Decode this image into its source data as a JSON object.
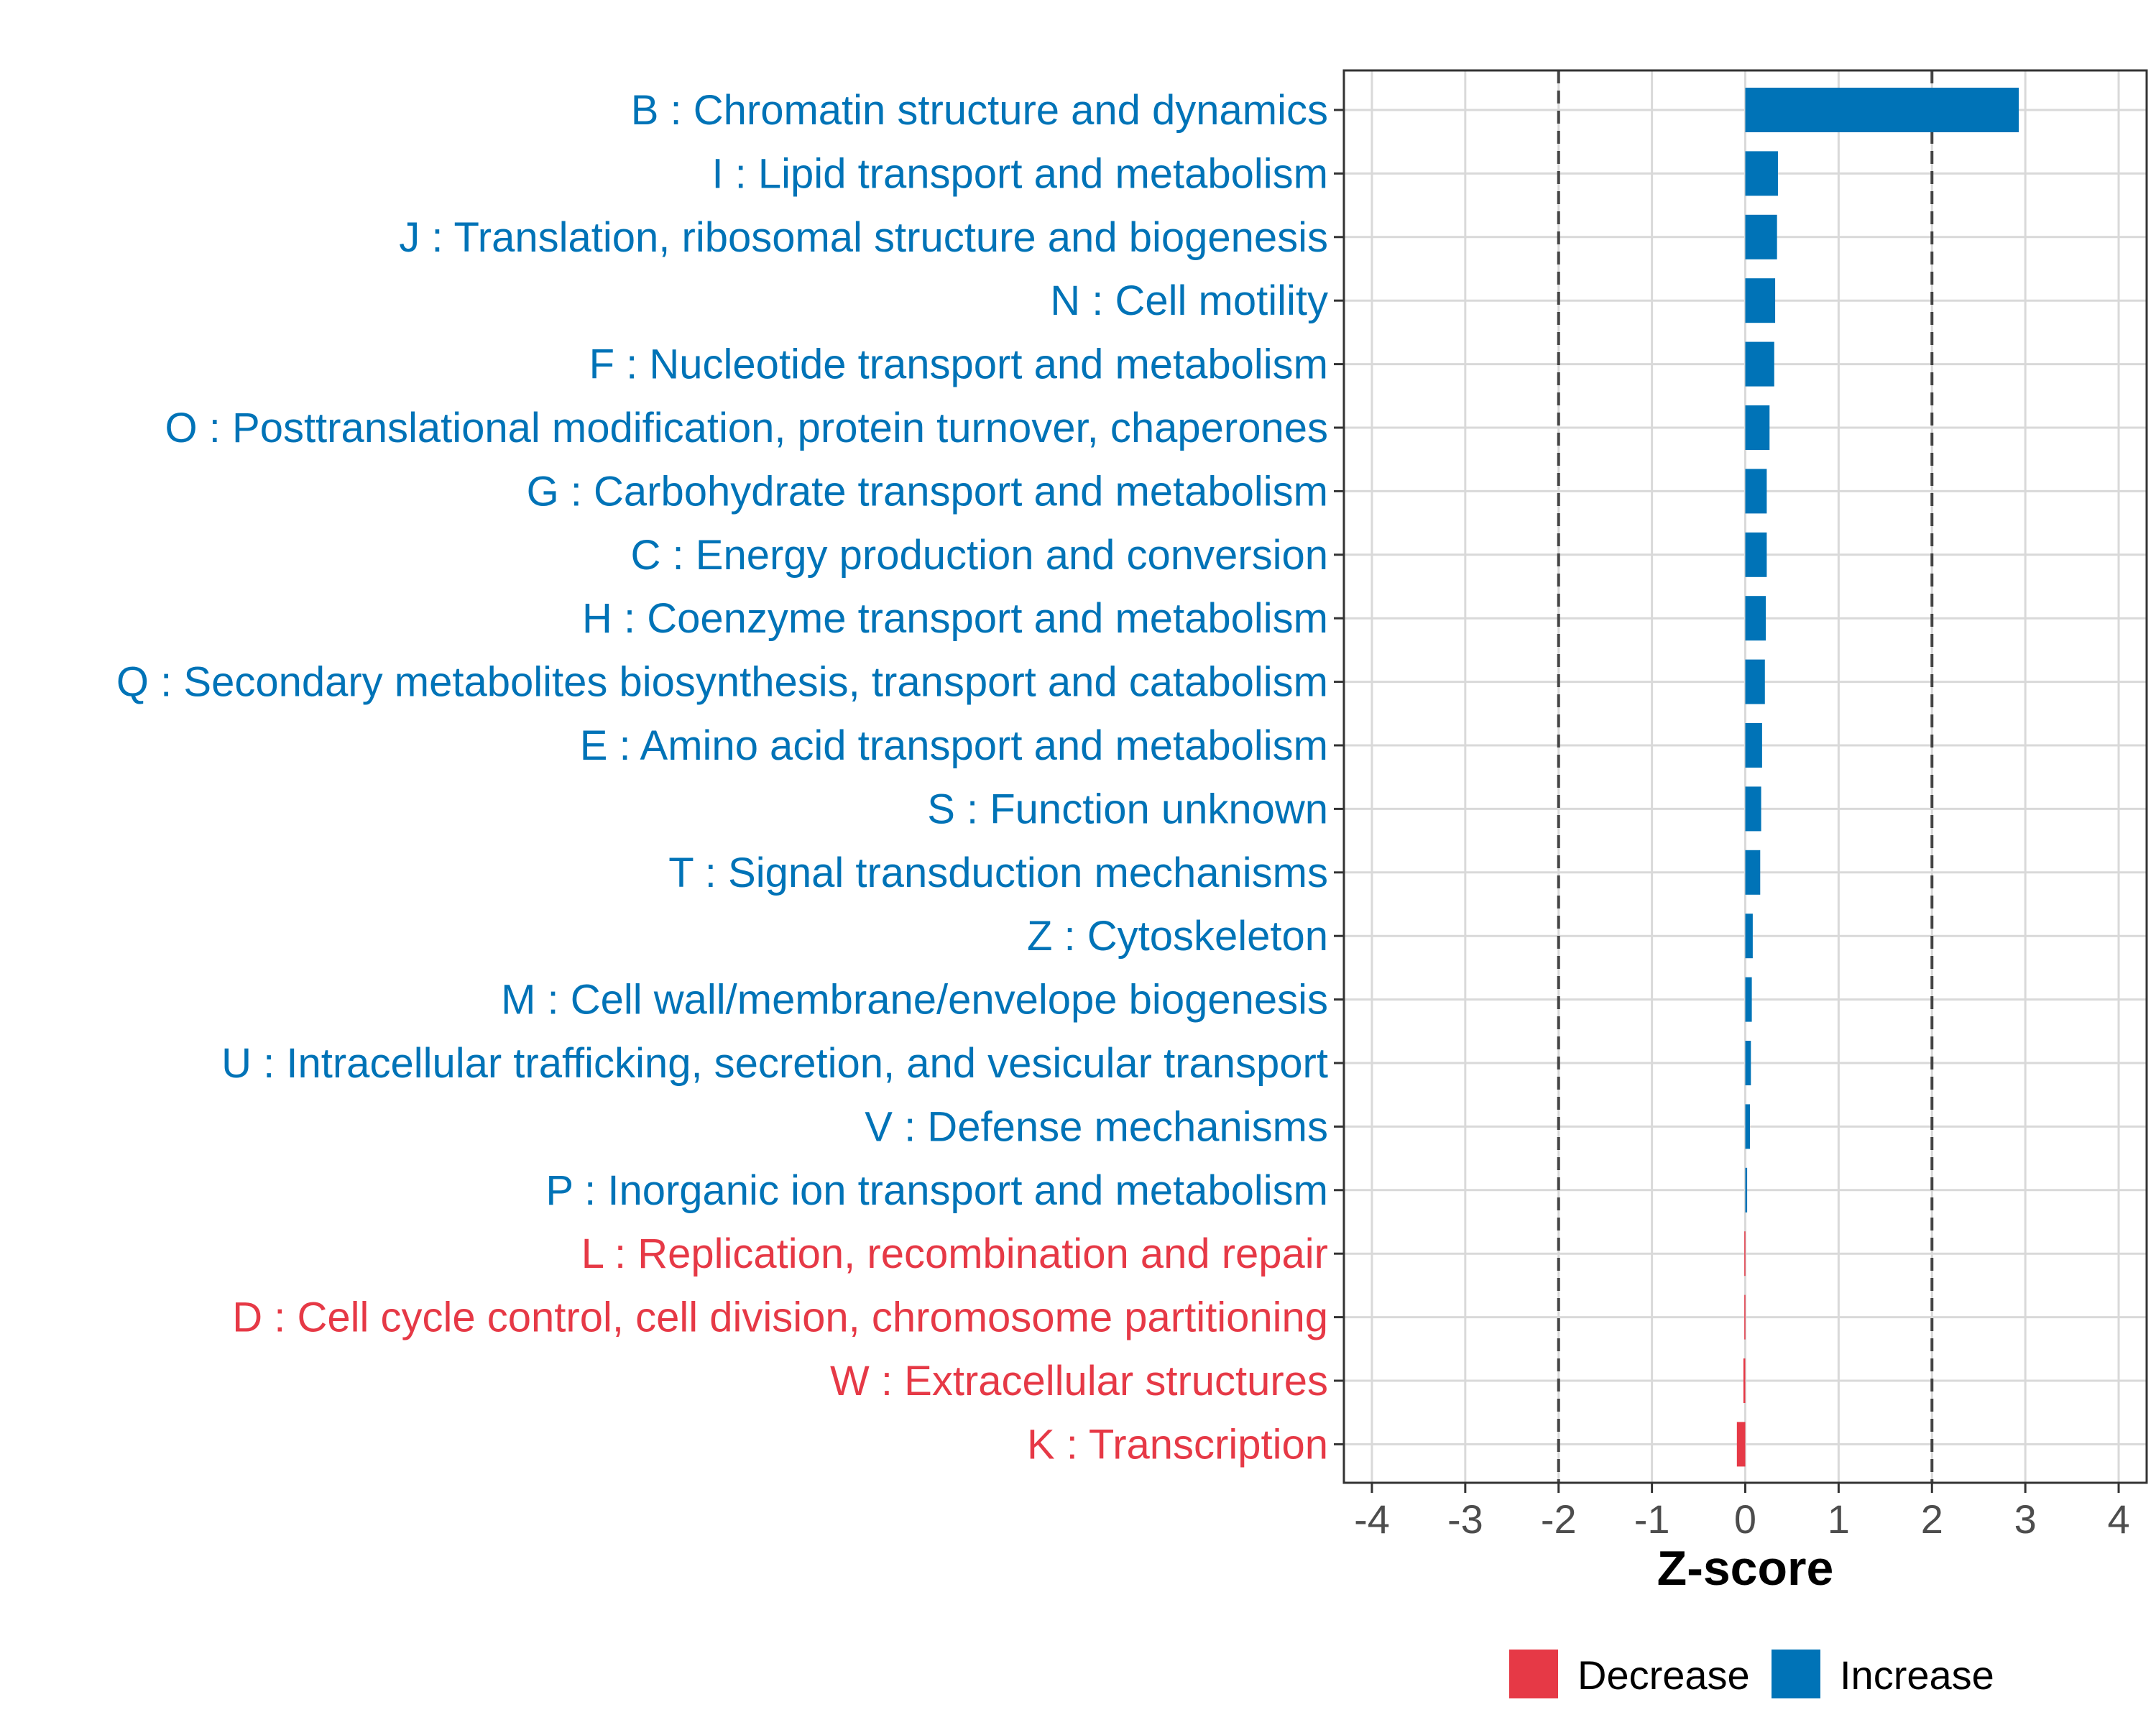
{
  "chart_data": {
    "type": "bar",
    "orientation": "horizontal",
    "categories": [
      "B : Chromatin structure and dynamics",
      "I : Lipid transport and metabolism",
      "J : Translation, ribosomal structure and biogenesis",
      "N : Cell motility",
      "F : Nucleotide transport and metabolism",
      "O : Posttranslational modification, protein turnover, chaperones",
      "G : Carbohydrate transport and metabolism",
      "C : Energy production and conversion",
      "H : Coenzyme transport and metabolism",
      "Q : Secondary metabolites biosynthesis, transport and catabolism",
      "E : Amino acid transport and metabolism",
      "S : Function unknown",
      "T : Signal transduction mechanisms",
      "Z : Cytoskeleton",
      "M : Cell wall/membrane/envelope biogenesis",
      "U : Intracellular trafficking, secretion, and vesicular transport",
      "V : Defense mechanisms",
      "P : Inorganic ion transport and metabolism",
      "L : Replication, recombination and repair",
      "D : Cell cycle control, cell division, chromosome partitioning",
      "W : Extracellular structures",
      "K : Transcription"
    ],
    "values": [
      2.93,
      0.35,
      0.34,
      0.32,
      0.31,
      0.26,
      0.23,
      0.23,
      0.22,
      0.21,
      0.18,
      0.17,
      0.16,
      0.08,
      0.07,
      0.06,
      0.05,
      0.02,
      -0.01,
      -0.01,
      -0.02,
      -0.09
    ],
    "groups": [
      "Increase",
      "Increase",
      "Increase",
      "Increase",
      "Increase",
      "Increase",
      "Increase",
      "Increase",
      "Increase",
      "Increase",
      "Increase",
      "Increase",
      "Increase",
      "Increase",
      "Increase",
      "Increase",
      "Increase",
      "Increase",
      "Decrease",
      "Decrease",
      "Decrease",
      "Decrease"
    ],
    "xlabel": "Z-score",
    "ylabel": "",
    "xlim": [
      -4.3,
      4.3
    ],
    "xticks": [
      -4,
      -3,
      -2,
      -1,
      0,
      1,
      2,
      3,
      4
    ],
    "xtick_labels": [
      "-4",
      "-3",
      "-2",
      "-1",
      "0",
      "1",
      "2",
      "3",
      "4"
    ],
    "reference_lines": [
      -2,
      2
    ],
    "grid": true,
    "legend": {
      "position": "bottom",
      "items": [
        {
          "label": "Decrease",
          "color": "#e63946"
        },
        {
          "label": "Increase",
          "color": "#0073b7"
        }
      ]
    },
    "colors": {
      "Increase": "#0073b7",
      "Decrease": "#e63946"
    }
  }
}
